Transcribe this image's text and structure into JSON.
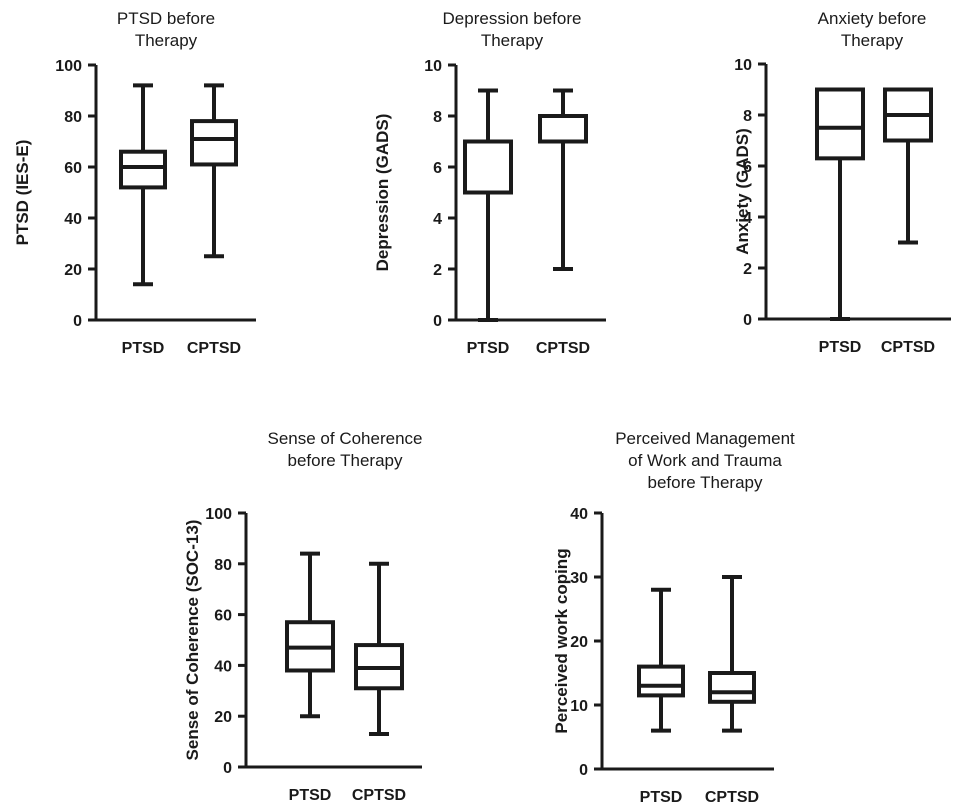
{
  "chart_data": [
    {
      "type": "boxplot",
      "title": [
        "PTSD before",
        "Therapy"
      ],
      "ylabel": "PTSD (IES-E)",
      "categories": [
        "PTSD",
        "CPTSD"
      ],
      "ylim": [
        0,
        100
      ],
      "yticks": [
        0,
        20,
        40,
        60,
        80,
        100
      ],
      "boxes": [
        {
          "min": 14,
          "q1": 52,
          "median": 60,
          "q3": 66,
          "max": 92
        },
        {
          "min": 25,
          "q1": 61,
          "median": 71,
          "q3": 78,
          "max": 92
        }
      ]
    },
    {
      "type": "boxplot",
      "title": [
        "Depression before",
        "Therapy"
      ],
      "ylabel": "Depression (GADS)",
      "categories": [
        "PTSD",
        "CPTSD"
      ],
      "ylim": [
        0,
        10
      ],
      "yticks": [
        0,
        2,
        4,
        6,
        8,
        10
      ],
      "boxes": [
        {
          "min": 0,
          "q1": 5,
          "median": 7,
          "q3": 7,
          "max": 9
        },
        {
          "min": 2,
          "q1": 7,
          "median": 7,
          "q3": 8,
          "max": 9
        }
      ]
    },
    {
      "type": "boxplot",
      "title": [
        "Anxiety before",
        "Therapy"
      ],
      "ylabel": "Anxiety (GADS)",
      "categories": [
        "PTSD",
        "CPTSD"
      ],
      "ylim": [
        0,
        10
      ],
      "yticks": [
        0,
        2,
        4,
        6,
        8,
        10
      ],
      "boxes": [
        {
          "min": 0,
          "q1": 6.3,
          "median": 7.5,
          "q3": 9,
          "max": 9
        },
        {
          "min": 3,
          "q1": 7,
          "median": 8,
          "q3": 9,
          "max": 9
        }
      ]
    },
    {
      "type": "boxplot",
      "title": [
        "Sense of Coherence",
        "before Therapy"
      ],
      "ylabel": "Sense of Coherence  (SOC-13)",
      "categories": [
        "PTSD",
        "CPTSD"
      ],
      "ylim": [
        0,
        100
      ],
      "yticks": [
        0,
        20,
        40,
        60,
        80,
        100
      ],
      "boxes": [
        {
          "min": 20,
          "q1": 38,
          "median": 47,
          "q3": 57,
          "max": 84
        },
        {
          "min": 13,
          "q1": 31,
          "median": 39,
          "q3": 48,
          "max": 80
        }
      ]
    },
    {
      "type": "boxplot",
      "title": [
        "Perceived  Management",
        "of Work and Trauma",
        "before Therapy"
      ],
      "ylabel": "Perceived work coping",
      "categories": [
        "PTSD",
        "CPTSD"
      ],
      "ylim": [
        0,
        40
      ],
      "yticks": [
        0,
        10,
        20,
        30,
        40
      ],
      "boxes": [
        {
          "min": 6,
          "q1": 11.5,
          "median": 13,
          "q3": 16,
          "max": 28
        },
        {
          "min": 6,
          "q1": 10.5,
          "median": 12,
          "q3": 15,
          "max": 30
        }
      ]
    }
  ]
}
